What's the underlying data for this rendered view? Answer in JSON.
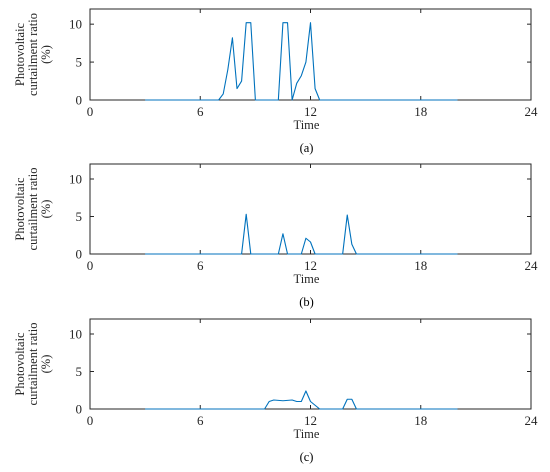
{
  "chart_data": [
    {
      "type": "line",
      "caption": "(a)",
      "xlabel": "Time",
      "ylabel_lines": [
        "Photovoltaic",
        "curtailment ratio",
        "(%)"
      ],
      "xlim": [
        0,
        24
      ],
      "ylim": [
        0,
        12
      ],
      "xticks": [
        0,
        6,
        12,
        18,
        24
      ],
      "yticks": [
        0,
        5,
        10
      ],
      "grid": false,
      "series": [
        {
          "color": "#0072BD",
          "x": [
            3,
            7,
            7.25,
            7.5,
            7.75,
            8,
            8.25,
            8.5,
            8.75,
            9,
            9.25,
            10.25,
            10.5,
            10.75,
            11,
            11.25,
            11.5,
            11.75,
            12,
            12.25,
            12.5,
            20
          ],
          "y": [
            0,
            0,
            0.8,
            4,
            8.2,
            1.5,
            2.5,
            10.2,
            10.2,
            0,
            0,
            0,
            10.2,
            10.2,
            0,
            2.2,
            3.2,
            5,
            10.2,
            1.5,
            0,
            0
          ]
        }
      ]
    },
    {
      "type": "line",
      "caption": "(b)",
      "xlabel": "Time",
      "ylabel_lines": [
        "Photovoltaic",
        "curtailment ratio",
        "(%)"
      ],
      "xlim": [
        0,
        24
      ],
      "ylim": [
        0,
        12
      ],
      "xticks": [
        0,
        6,
        12,
        18,
        24
      ],
      "yticks": [
        0,
        5,
        10
      ],
      "grid": false,
      "series": [
        {
          "color": "#0072BD",
          "x": [
            3,
            8.25,
            8.5,
            8.75,
            10.25,
            10.5,
            10.75,
            11.5,
            11.75,
            12,
            12.25,
            13.75,
            14,
            14.25,
            14.5,
            20
          ],
          "y": [
            0,
            0,
            5.3,
            0,
            0,
            2.7,
            0,
            0,
            2.1,
            1.6,
            0,
            0,
            5.2,
            1.3,
            0,
            0
          ]
        }
      ]
    },
    {
      "type": "line",
      "caption": "(c)",
      "xlabel": "Time",
      "ylabel_lines": [
        "Photovoltaic",
        "curtailment ratio",
        "(%)"
      ],
      "xlim": [
        0,
        24
      ],
      "ylim": [
        0,
        12
      ],
      "xticks": [
        0,
        6,
        12,
        18,
        24
      ],
      "yticks": [
        0,
        5,
        10
      ],
      "grid": false,
      "series": [
        {
          "color": "#0072BD",
          "x": [
            3,
            9.5,
            9.75,
            10,
            10.5,
            11,
            11.25,
            11.5,
            11.75,
            12,
            12.25,
            12.5,
            13.75,
            14,
            14.25,
            14.5,
            20
          ],
          "y": [
            0,
            0,
            1.0,
            1.2,
            1.1,
            1.2,
            1.0,
            1.0,
            2.4,
            1.0,
            0.5,
            0,
            0,
            1.3,
            1.3,
            0,
            0
          ]
        }
      ]
    }
  ]
}
